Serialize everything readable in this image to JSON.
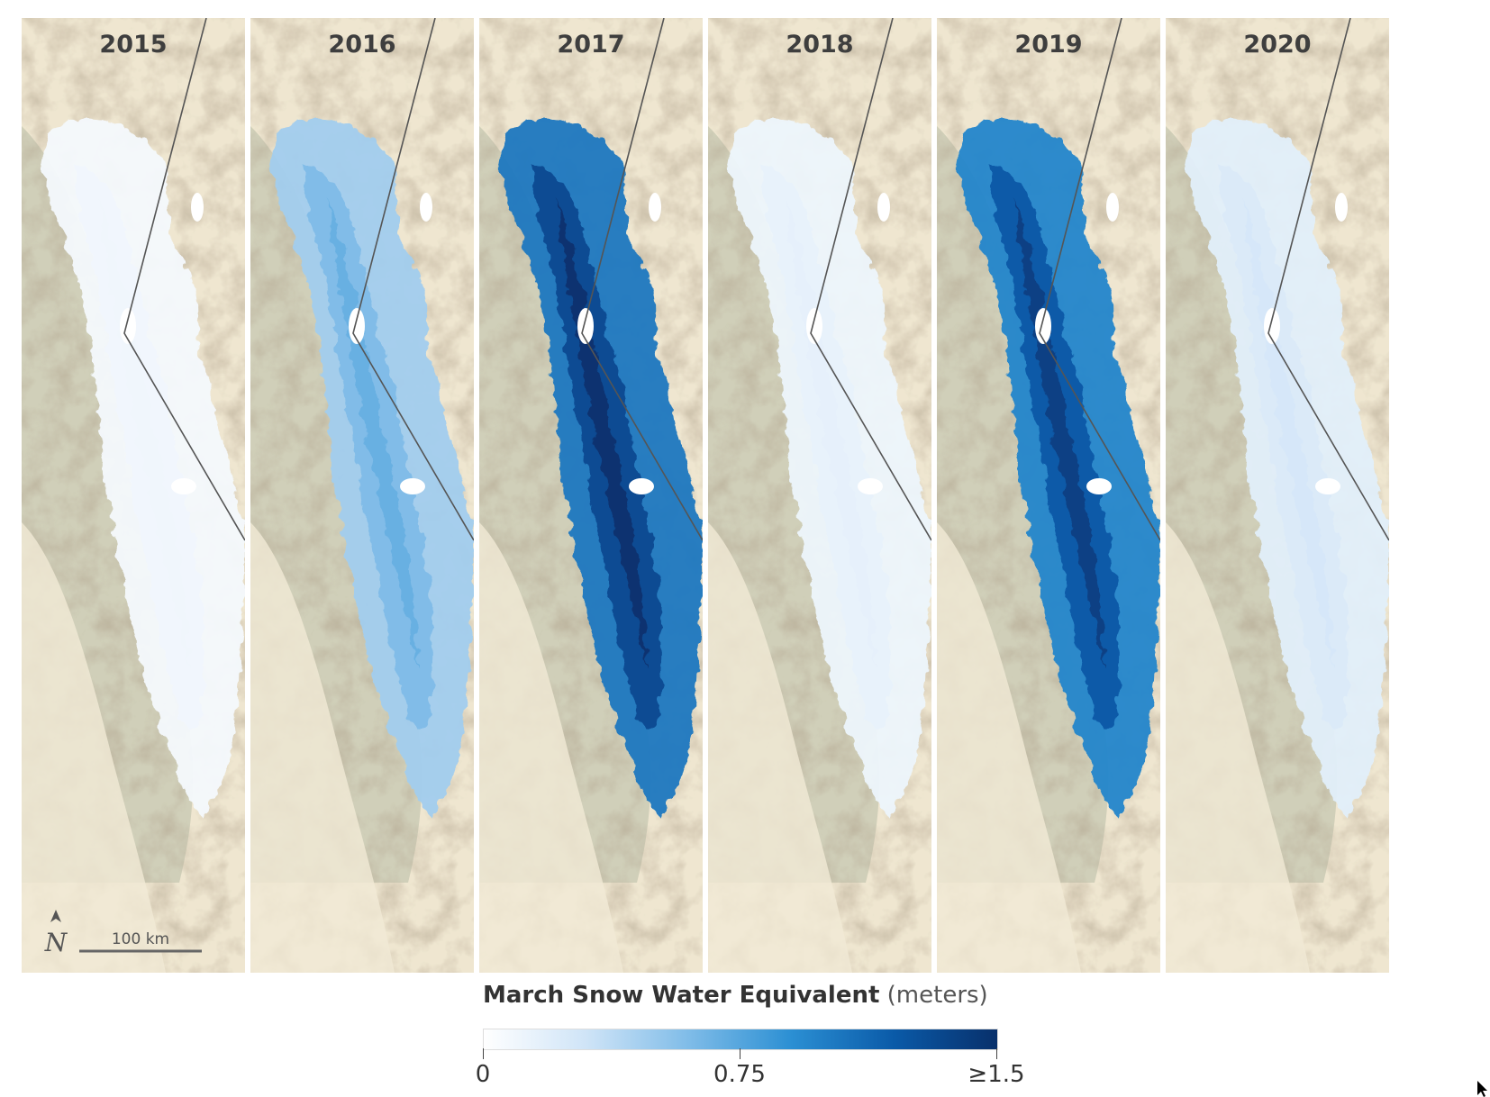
{
  "panels": [
    {
      "year": "2015",
      "level": 0.06
    },
    {
      "year": "2016",
      "level": 0.42
    },
    {
      "year": "2017",
      "level": 0.92
    },
    {
      "year": "2018",
      "level": 0.1
    },
    {
      "year": "2019",
      "level": 0.85
    },
    {
      "year": "2020",
      "level": 0.16
    }
  ],
  "scale_bar": {
    "label": "100 km"
  },
  "north_arrow": {
    "icon": "north-arrow-icon",
    "letter": "N"
  },
  "legend": {
    "title_bold": "March Snow Water Equivalent",
    "title_unit": "(meters)",
    "ticks": [
      {
        "label": "0",
        "value": 0
      },
      {
        "label": "0.75",
        "value": 0.75
      },
      {
        "label": "≥1.5",
        "value": 1.5
      }
    ],
    "colors": [
      "#ffffff",
      "#cfe4f7",
      "#7fbce8",
      "#2b8fd3",
      "#0a5aa8",
      "#08306b"
    ]
  },
  "colors": {
    "terrain_base": "#efe6d0",
    "terrain_ridge": "#c9b597",
    "terrain_forest": "#b6bca6",
    "border_line": "#555555"
  }
}
